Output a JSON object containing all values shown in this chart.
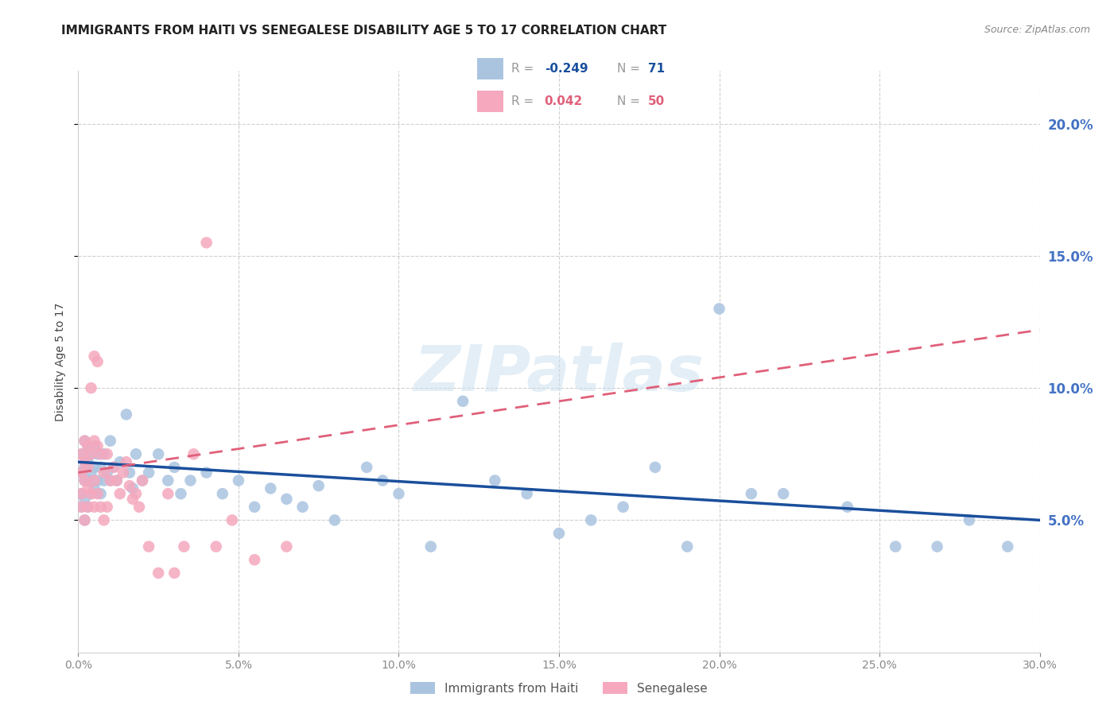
{
  "title": "IMMIGRANTS FROM HAITI VS SENEGALESE DISABILITY AGE 5 TO 17 CORRELATION CHART",
  "source": "Source: ZipAtlas.com",
  "ylabel": "Disability Age 5 to 17",
  "xlim": [
    0.0,
    0.3
  ],
  "ylim": [
    0.0,
    0.22
  ],
  "xtick_positions": [
    0.0,
    0.05,
    0.1,
    0.15,
    0.2,
    0.25,
    0.3
  ],
  "xtick_labels": [
    "0.0%",
    "5.0%",
    "10.0%",
    "15.0%",
    "20.0%",
    "25.0%",
    "30.0%"
  ],
  "ytick_positions": [
    0.05,
    0.1,
    0.15,
    0.2
  ],
  "ytick_labels": [
    "5.0%",
    "10.0%",
    "15.0%",
    "20.0%"
  ],
  "haiti_color": "#aac4e0",
  "senegal_color": "#f5a8be",
  "haiti_line_color": "#1a4f9c",
  "senegal_line_color": "#e0607a",
  "haiti_R": "-0.249",
  "haiti_N": "71",
  "senegal_R": "0.042",
  "senegal_N": "50",
  "watermark": "ZIPatlas",
  "right_axis_color": "#4472c4",
  "grid_color": "#d0d0d0",
  "title_color": "#222222",
  "source_color": "#888888",
  "ylabel_color": "#444444",
  "tick_color": "#888888",
  "haiti_x": [
    0.001,
    0.001,
    0.001,
    0.001,
    0.002,
    0.002,
    0.002,
    0.002,
    0.002,
    0.003,
    0.003,
    0.003,
    0.003,
    0.004,
    0.004,
    0.004,
    0.005,
    0.005,
    0.005,
    0.006,
    0.006,
    0.007,
    0.007,
    0.008,
    0.008,
    0.009,
    0.01,
    0.01,
    0.011,
    0.012,
    0.013,
    0.015,
    0.016,
    0.017,
    0.018,
    0.02,
    0.022,
    0.025,
    0.028,
    0.03,
    0.032,
    0.035,
    0.04,
    0.045,
    0.05,
    0.055,
    0.06,
    0.065,
    0.07,
    0.075,
    0.08,
    0.09,
    0.095,
    0.1,
    0.11,
    0.12,
    0.13,
    0.14,
    0.15,
    0.16,
    0.17,
    0.18,
    0.19,
    0.2,
    0.21,
    0.22,
    0.24,
    0.255,
    0.268,
    0.278,
    0.29
  ],
  "haiti_y": [
    0.075,
    0.068,
    0.06,
    0.055,
    0.08,
    0.07,
    0.065,
    0.058,
    0.05,
    0.078,
    0.072,
    0.065,
    0.055,
    0.075,
    0.068,
    0.06,
    0.078,
    0.07,
    0.062,
    0.075,
    0.065,
    0.07,
    0.06,
    0.075,
    0.065,
    0.068,
    0.08,
    0.065,
    0.07,
    0.065,
    0.072,
    0.09,
    0.068,
    0.062,
    0.075,
    0.065,
    0.068,
    0.075,
    0.065,
    0.07,
    0.06,
    0.065,
    0.068,
    0.06,
    0.065,
    0.055,
    0.062,
    0.058,
    0.055,
    0.063,
    0.05,
    0.07,
    0.065,
    0.06,
    0.04,
    0.095,
    0.065,
    0.06,
    0.045,
    0.05,
    0.055,
    0.07,
    0.04,
    0.13,
    0.06,
    0.06,
    0.055,
    0.04,
    0.04,
    0.05,
    0.04
  ],
  "senegal_x": [
    0.001,
    0.001,
    0.001,
    0.001,
    0.002,
    0.002,
    0.002,
    0.002,
    0.003,
    0.003,
    0.003,
    0.003,
    0.004,
    0.004,
    0.004,
    0.005,
    0.005,
    0.005,
    0.005,
    0.006,
    0.006,
    0.006,
    0.007,
    0.007,
    0.008,
    0.008,
    0.009,
    0.009,
    0.01,
    0.011,
    0.012,
    0.013,
    0.014,
    0.015,
    0.016,
    0.017,
    0.018,
    0.019,
    0.02,
    0.022,
    0.025,
    0.028,
    0.03,
    0.033,
    0.036,
    0.04,
    0.043,
    0.048,
    0.055,
    0.065
  ],
  "senegal_y": [
    0.075,
    0.068,
    0.06,
    0.055,
    0.08,
    0.072,
    0.065,
    0.05,
    0.078,
    0.07,
    0.062,
    0.055,
    0.1,
    0.075,
    0.06,
    0.112,
    0.08,
    0.065,
    0.055,
    0.11,
    0.078,
    0.06,
    0.075,
    0.055,
    0.068,
    0.05,
    0.075,
    0.055,
    0.065,
    0.07,
    0.065,
    0.06,
    0.068,
    0.072,
    0.063,
    0.058,
    0.06,
    0.055,
    0.065,
    0.04,
    0.03,
    0.06,
    0.03,
    0.04,
    0.075,
    0.155,
    0.04,
    0.05,
    0.035,
    0.04
  ],
  "haiti_line_x0": 0.0,
  "haiti_line_x1": 0.3,
  "haiti_line_y0": 0.072,
  "haiti_line_y1": 0.05,
  "senegal_line_x0": 0.0,
  "senegal_line_x1": 0.3,
  "senegal_line_y0": 0.068,
  "senegal_line_y1": 0.122
}
